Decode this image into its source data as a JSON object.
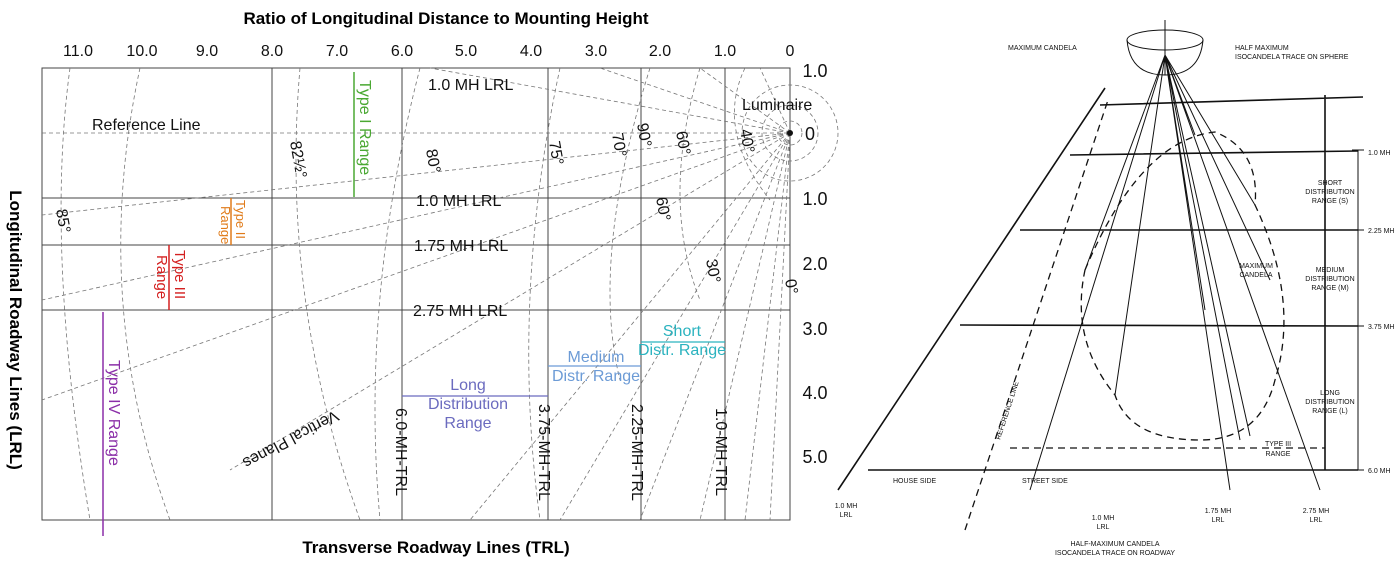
{
  "left": {
    "title": "Ratio of Longitudinal Distance to Mounting Height",
    "x_labels": [
      "11.0",
      "10.0",
      "9.0",
      "8.0",
      "7.0",
      "6.0",
      "5.0",
      "4.0",
      "3.0",
      "2.0",
      "1.0",
      "0"
    ],
    "y_labels": [
      "1.0",
      "0",
      "1.0",
      "2.0",
      "3.0",
      "4.0",
      "5.0"
    ],
    "y_axis_title": "Longitudinal Roadway Lines (LRL)",
    "x_axis_title": "Transverse Roadway Lines (TRL)",
    "line_labels": [
      "1.0 MH LRL",
      "Reference Line",
      "Luminaire",
      "1.0 MH LRL",
      "1.75 MH LRL",
      "2.75 MH LRL"
    ],
    "trl_labels": [
      "6.0-MH-TRL",
      "3.75-MH-TRL",
      "2.25-MH-TRL",
      "1.0-MH-TRL"
    ],
    "angles": [
      "85°",
      "82½°",
      "80°",
      "75°",
      "70°",
      "90°",
      "60°",
      "40°",
      "60°",
      "30°",
      "0°"
    ],
    "type_ranges": [
      [
        "Type I Range"
      ],
      [
        "Type II",
        "Range"
      ],
      [
        "Type III",
        "Range"
      ],
      [
        "Type IV Range"
      ]
    ],
    "distr_ranges": [
      [
        "Short",
        "Distr. Range"
      ],
      [
        "Medium",
        "Distr. Range"
      ],
      [
        "Long",
        "Distribution",
        "Range"
      ]
    ],
    "vertical_planes": "Vertical Planes"
  },
  "right": {
    "labels": [
      [
        "MAXIMUM CANDELA"
      ],
      [
        "HALF MAXIMUM",
        "ISOCANDELA TRACE ON SPHERE"
      ],
      [
        "1.0 MH"
      ],
      [
        "SHORT",
        "DISTRIBUTION",
        "RANGE (S)"
      ],
      [
        "2.25 MH"
      ],
      [
        "MEDIUM",
        "DISTRIBUTION",
        "RANGE (M)"
      ],
      [
        "3.75 MH"
      ],
      [
        "LONG",
        "DISTRIBUTION",
        "RANGE (L)"
      ],
      [
        "6.0 MH"
      ],
      [
        "MAXIMUM",
        "CANDELA"
      ],
      [
        "REFERENCE LINE"
      ],
      [
        "TYPE III",
        "RANGE"
      ],
      [
        "HOUSE SIDE"
      ],
      [
        "STREET SIDE"
      ],
      [
        "1.0 MH",
        "LRL"
      ],
      [
        "1.0 MH",
        "LRL"
      ],
      [
        "1.75 MH",
        "LRL"
      ],
      [
        "2.75 MH",
        "LRL"
      ],
      [
        "HALF-MAXIMUM CANDELA",
        "ISOCANDELA TRACE ON ROADWAY"
      ]
    ]
  }
}
